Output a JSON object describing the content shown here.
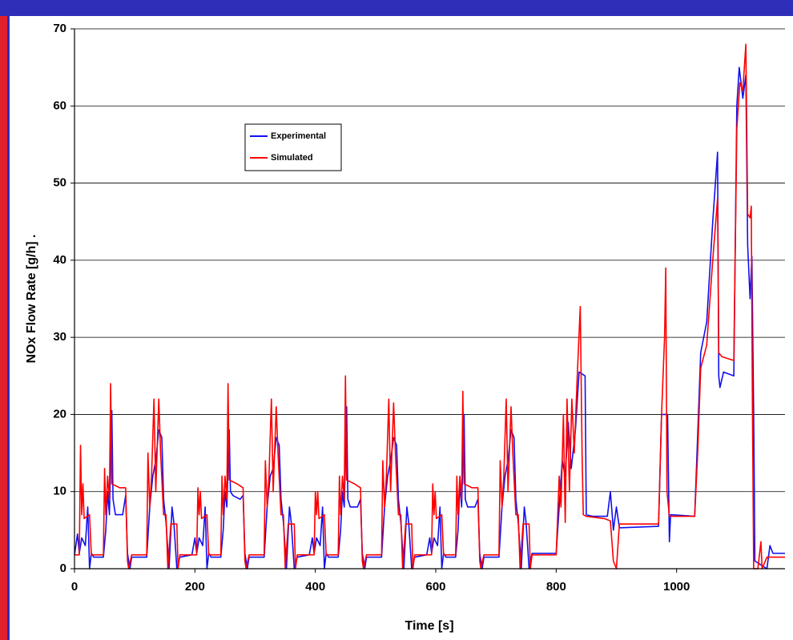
{
  "chart_data": {
    "type": "line",
    "xlabel": "Time [s]",
    "ylabel": "NOx Flow Rate [g/h]  .",
    "xlim": [
      0,
      1180
    ],
    "ylim": [
      0,
      70
    ],
    "xticks": [
      0,
      200,
      400,
      600,
      800,
      1000
    ],
    "yticks": [
      0,
      10,
      20,
      30,
      40,
      50,
      60,
      70
    ],
    "grid": true,
    "legend": "upper left",
    "series": [
      {
        "name": "Experimental",
        "color": "#1010f0",
        "x": [
          0,
          5,
          8,
          12,
          18,
          22,
          25,
          28,
          32,
          48,
          52,
          55,
          58,
          62,
          64,
          68,
          80,
          85,
          88,
          92,
          95,
          120,
          125,
          130,
          135,
          140,
          145,
          148,
          152,
          157,
          162,
          165,
          170,
          175,
          195,
          200,
          203,
          207,
          213,
          217,
          220,
          223,
          227,
          243,
          247,
          250,
          253,
          257,
          259,
          263,
          275,
          280,
          283,
          287,
          290,
          315,
          320,
          325,
          330,
          335,
          340,
          343,
          347,
          352,
          357,
          360,
          365,
          370,
          390,
          395,
          398,
          402,
          408,
          412,
          415,
          418,
          422,
          438,
          442,
          445,
          448,
          452,
          454,
          458,
          470,
          475,
          478,
          482,
          485,
          510,
          515,
          520,
          525,
          530,
          535,
          538,
          542,
          547,
          552,
          555,
          560,
          565,
          585,
          590,
          593,
          597,
          603,
          607,
          610,
          613,
          617,
          633,
          637,
          640,
          643,
          647,
          649,
          653,
          665,
          670,
          673,
          677,
          680,
          705,
          710,
          715,
          720,
          725,
          730,
          733,
          737,
          742,
          747,
          750,
          755,
          760,
          780,
          800,
          805,
          810,
          815,
          820,
          825,
          832,
          838,
          848,
          850,
          860,
          885,
          890,
          895,
          900,
          905,
          970,
          975,
          985,
          988,
          990,
          1030,
          1040,
          1045,
          1050,
          1060,
          1068,
          1070,
          1072,
          1078,
          1095,
          1100,
          1104,
          1110,
          1115,
          1118,
          1122,
          1125,
          1128,
          1130,
          1140,
          1150,
          1155,
          1160,
          1180
        ],
        "values": [
          1.8,
          4.5,
          2,
          4,
          3,
          8,
          0,
          2,
          1.5,
          1.5,
          5,
          10,
          7,
          20.5,
          9,
          7,
          7,
          9.5,
          2,
          0,
          1.5,
          1.5,
          8,
          12,
          14,
          18,
          17,
          9,
          6,
          0,
          8,
          6,
          0,
          1.5,
          1.8,
          4,
          2,
          4,
          3,
          8,
          0,
          2,
          1.5,
          1.5,
          5,
          10,
          8,
          18,
          10,
          9.5,
          9,
          9.5,
          2,
          0,
          1.5,
          1.5,
          8,
          12,
          13,
          17,
          16,
          9,
          6,
          0,
          8,
          6,
          0,
          1.5,
          1.8,
          4,
          2,
          4,
          3,
          8,
          0,
          2,
          1.5,
          1.5,
          5,
          10,
          8,
          21,
          9,
          8,
          8,
          9,
          2,
          0,
          1.5,
          1.5,
          8,
          12,
          14,
          17,
          16,
          9,
          6,
          0,
          8,
          6,
          0,
          1.5,
          1.8,
          4,
          2,
          4,
          3,
          8,
          0,
          2,
          1.5,
          1.5,
          5,
          11,
          8,
          20,
          9,
          8,
          8,
          9,
          2,
          0,
          1.5,
          1.5,
          8,
          12,
          14,
          18,
          17,
          9,
          6,
          0,
          8,
          6,
          0,
          2,
          2,
          2,
          8,
          14,
          12,
          19,
          13,
          18,
          25.5,
          25,
          7,
          6.8,
          6.8,
          10,
          5,
          8,
          5.3,
          5.5,
          20,
          20,
          3.5,
          7,
          6.8,
          28,
          30,
          32,
          45,
          54,
          25,
          23.5,
          25.5,
          25,
          60,
          65,
          61,
          64,
          42,
          35,
          40.5,
          20,
          1,
          0.5,
          0,
          3,
          2,
          2
        ]
      },
      {
        "name": "Simulated",
        "color": "#ff0000",
        "x": [
          0,
          8,
          10,
          12,
          14,
          16,
          25,
          28,
          48,
          50,
          52,
          55,
          58,
          60,
          62,
          75,
          85,
          88,
          90,
          95,
          120,
          122,
          125,
          128,
          132,
          135,
          140,
          143,
          148,
          152,
          155,
          160,
          170,
          172,
          175,
          195,
          203,
          205,
          207,
          209,
          211,
          220,
          223,
          243,
          245,
          247,
          250,
          253,
          255,
          257,
          270,
          280,
          283,
          285,
          290,
          315,
          317,
          320,
          323,
          327,
          330,
          335,
          338,
          343,
          347,
          350,
          355,
          365,
          367,
          370,
          390,
          398,
          400,
          402,
          404,
          406,
          415,
          418,
          438,
          440,
          442,
          445,
          448,
          450,
          452,
          465,
          475,
          478,
          480,
          485,
          510,
          512,
          515,
          518,
          522,
          525,
          530,
          533,
          538,
          542,
          545,
          550,
          560,
          562,
          565,
          585,
          593,
          595,
          597,
          599,
          601,
          610,
          613,
          633,
          635,
          637,
          640,
          643,
          645,
          647,
          660,
          670,
          673,
          675,
          680,
          705,
          707,
          710,
          713,
          717,
          720,
          725,
          728,
          733,
          737,
          740,
          745,
          755,
          757,
          760,
          780,
          800,
          805,
          808,
          812,
          815,
          818,
          822,
          826,
          830,
          835,
          840,
          843,
          845,
          850,
          880,
          890,
          895,
          900,
          905,
          970,
          975,
          980,
          982,
          984,
          988,
          1030,
          1035,
          1040,
          1050,
          1060,
          1068,
          1070,
          1075,
          1095,
          1100,
          1105,
          1110,
          1115,
          1118,
          1122,
          1124,
          1126,
          1128,
          1135,
          1140,
          1142,
          1150,
          1165,
          1180
        ],
        "values": [
          1.8,
          1.8,
          16,
          7,
          11,
          6.5,
          7,
          1.8,
          1.8,
          13,
          7,
          12,
          9,
          24,
          11,
          10.5,
          10.5,
          1,
          0,
          1.8,
          1.8,
          15,
          8,
          12,
          22,
          10,
          22,
          15,
          7,
          7,
          0,
          5.8,
          5.8,
          0,
          1.8,
          1.8,
          1.8,
          10.5,
          7,
          10,
          6.5,
          7,
          1.8,
          1.8,
          12,
          7,
          12,
          9,
          24,
          11.5,
          11,
          10.5,
          1,
          0,
          1.8,
          1.8,
          14,
          8,
          12,
          22,
          10,
          21,
          15,
          7,
          7,
          0,
          5.8,
          5.8,
          0,
          1.8,
          1.8,
          1.8,
          10,
          7,
          10,
          6.5,
          7,
          1.8,
          1.8,
          12,
          7,
          12,
          9,
          25,
          11.5,
          11,
          10.5,
          1,
          0,
          1.8,
          1.8,
          14,
          8,
          12,
          22,
          10,
          21.5,
          15,
          7,
          7,
          0,
          5.8,
          5.8,
          0,
          1.8,
          1.8,
          1.8,
          11,
          7,
          10,
          6.5,
          7,
          1.8,
          1.8,
          12,
          7,
          12,
          9,
          23,
          11,
          10.5,
          10.5,
          1,
          0,
          1.8,
          1.8,
          14,
          8,
          12,
          22,
          10,
          21,
          15,
          7,
          7,
          0,
          5.8,
          5.8,
          0,
          1.8,
          1.8,
          1.8,
          12,
          8,
          20,
          6,
          22,
          10,
          22,
          15,
          25,
          34,
          15,
          7,
          6.8,
          6.5,
          6.2,
          1,
          0,
          5.8,
          5.8,
          20,
          30,
          39,
          10,
          6.8,
          6.8,
          15,
          26,
          29,
          40,
          48,
          28,
          27.5,
          27,
          57,
          63,
          62,
          68,
          46,
          45.5,
          47,
          20,
          0,
          0,
          3.5,
          0,
          1.5,
          1.5,
          1.5
        ]
      }
    ]
  }
}
